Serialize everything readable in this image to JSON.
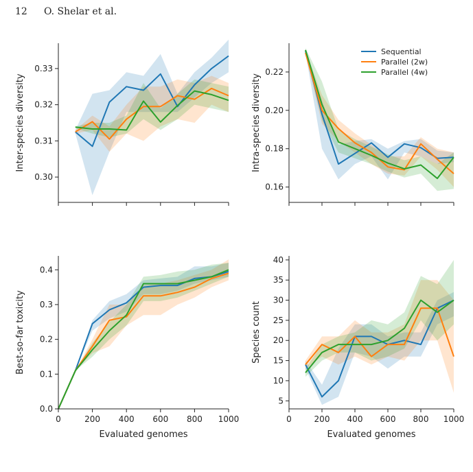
{
  "header": {
    "page_number": "12",
    "running_head": "O. Shelar et al."
  },
  "colors": {
    "Sequential": "#1f77b4",
    "Parallel (2w)": "#ff7f0e",
    "Parallel (4w)": "#2ca02c"
  },
  "chart_data": [
    {
      "type": "line",
      "ylabel": "Inter-species diversity",
      "xlabel": "",
      "xlim": [
        0,
        1000
      ],
      "ylim": [
        0.293,
        0.337
      ],
      "yticks": [
        "0.30",
        "0.31",
        "0.32",
        "0.33"
      ],
      "xticks": [],
      "legend": false,
      "x": [
        100,
        200,
        300,
        400,
        500,
        600,
        700,
        800,
        900,
        1000
      ],
      "series": [
        {
          "name": "Sequential",
          "values": [
            0.3125,
            0.3085,
            0.3207,
            0.325,
            0.324,
            0.3285,
            0.3195,
            0.3255,
            0.33,
            0.3335
          ],
          "lower": [
            0.312,
            0.295,
            0.307,
            0.318,
            0.318,
            0.318,
            0.318,
            0.322,
            0.326,
            0.329
          ],
          "upper": [
            0.313,
            0.323,
            0.324,
            0.329,
            0.328,
            0.334,
            0.323,
            0.329,
            0.333,
            0.338
          ]
        },
        {
          "name": "Parallel (2w)",
          "values": [
            0.3125,
            0.3153,
            0.3105,
            0.316,
            0.3195,
            0.3195,
            0.3225,
            0.3215,
            0.3245,
            0.3225
          ],
          "lower": [
            0.312,
            0.313,
            0.307,
            0.312,
            0.31,
            0.314,
            0.316,
            0.315,
            0.32,
            0.318
          ],
          "upper": [
            0.313,
            0.317,
            0.314,
            0.32,
            0.325,
            0.325,
            0.327,
            0.326,
            0.328,
            0.326
          ]
        },
        {
          "name": "Parallel (4w)",
          "values": [
            0.3138,
            0.3133,
            0.3133,
            0.313,
            0.321,
            0.3152,
            0.3198,
            0.3238,
            0.3228,
            0.3212
          ],
          "lower": [
            0.3135,
            0.312,
            0.311,
            0.312,
            0.316,
            0.313,
            0.316,
            0.32,
            0.319,
            0.318
          ],
          "upper": [
            0.314,
            0.315,
            0.315,
            0.317,
            0.326,
            0.319,
            0.323,
            0.327,
            0.326,
            0.325
          ]
        }
      ]
    },
    {
      "type": "line",
      "ylabel": "Intra-species diversity",
      "xlabel": "",
      "xlim": [
        0,
        1000
      ],
      "ylim": [
        0.152,
        0.235
      ],
      "yticks": [
        "0.16",
        "0.18",
        "0.20",
        "0.22"
      ],
      "xticks": [],
      "legend": true,
      "legend_position": "top-right",
      "x": [
        100,
        200,
        300,
        400,
        500,
        600,
        700,
        800,
        900,
        1000
      ],
      "series": [
        {
          "name": "Sequential",
          "values": [
            0.231,
            0.198,
            0.172,
            0.1775,
            0.183,
            0.1755,
            0.1825,
            0.1805,
            0.175,
            0.1755
          ],
          "lower": [
            0.23,
            0.18,
            0.164,
            0.172,
            0.176,
            0.164,
            0.178,
            0.176,
            0.172,
            0.173
          ],
          "upper": [
            0.232,
            0.205,
            0.182,
            0.184,
            0.185,
            0.18,
            0.184,
            0.185,
            0.179,
            0.178
          ]
        },
        {
          "name": "Parallel (2w)",
          "values": [
            0.23,
            0.2,
            0.1905,
            0.183,
            0.178,
            0.1705,
            0.169,
            0.1825,
            0.1745,
            0.167
          ],
          "lower": [
            0.229,
            0.193,
            0.184,
            0.178,
            0.172,
            0.167,
            0.166,
            0.176,
            0.169,
            0.16
          ],
          "upper": [
            0.231,
            0.208,
            0.195,
            0.188,
            0.182,
            0.176,
            0.176,
            0.186,
            0.18,
            0.178
          ]
        },
        {
          "name": "Parallel (4w)",
          "values": [
            0.2315,
            0.203,
            0.1835,
            0.18,
            0.1765,
            0.1725,
            0.1695,
            0.1715,
            0.1645,
            0.1755
          ],
          "lower": [
            0.2305,
            0.195,
            0.178,
            0.175,
            0.172,
            0.168,
            0.165,
            0.167,
            0.158,
            0.159
          ],
          "upper": [
            0.2325,
            0.215,
            0.19,
            0.185,
            0.181,
            0.177,
            0.174,
            0.176,
            0.172,
            0.178
          ]
        }
      ]
    },
    {
      "type": "line",
      "ylabel": "Best-so-far toxicity",
      "xlabel": "Evaluated genomes",
      "xlim": [
        0,
        1000
      ],
      "ylim": [
        0.0,
        0.44
      ],
      "yticks": [
        "0.0",
        "0.1",
        "0.2",
        "0.3",
        "0.4"
      ],
      "xticks": [
        "0",
        "200",
        "400",
        "600",
        "800",
        "1000"
      ],
      "legend": false,
      "x": [
        0,
        100,
        200,
        300,
        400,
        500,
        600,
        700,
        800,
        900,
        1000
      ],
      "series": [
        {
          "name": "Sequential",
          "values": [
            0.0,
            0.11,
            0.245,
            0.285,
            0.305,
            0.35,
            0.355,
            0.355,
            0.375,
            0.38,
            0.395
          ],
          "lower": [
            0.0,
            0.11,
            0.225,
            0.26,
            0.28,
            0.33,
            0.33,
            0.34,
            0.36,
            0.37,
            0.38
          ],
          "upper": [
            0.0,
            0.11,
            0.255,
            0.31,
            0.33,
            0.37,
            0.375,
            0.38,
            0.41,
            0.41,
            0.42
          ]
        },
        {
          "name": "Parallel (2w)",
          "values": [
            0.0,
            0.11,
            0.18,
            0.255,
            0.265,
            0.325,
            0.325,
            0.335,
            0.35,
            0.375,
            0.39
          ],
          "lower": [
            0.0,
            0.11,
            0.16,
            0.18,
            0.24,
            0.27,
            0.27,
            0.3,
            0.32,
            0.35,
            0.37
          ],
          "upper": [
            0.0,
            0.11,
            0.2,
            0.3,
            0.3,
            0.355,
            0.36,
            0.37,
            0.385,
            0.4,
            0.43
          ]
        },
        {
          "name": "Parallel (4w)",
          "values": [
            0.0,
            0.11,
            0.17,
            0.225,
            0.27,
            0.36,
            0.36,
            0.36,
            0.37,
            0.38,
            0.4
          ],
          "lower": [
            0.0,
            0.11,
            0.15,
            0.2,
            0.24,
            0.31,
            0.31,
            0.32,
            0.34,
            0.36,
            0.38
          ],
          "upper": [
            0.0,
            0.11,
            0.19,
            0.25,
            0.3,
            0.38,
            0.385,
            0.395,
            0.4,
            0.415,
            0.42
          ]
        }
      ]
    },
    {
      "type": "line",
      "ylabel": "Species count",
      "xlabel": "Evaluated genomes",
      "xlim": [
        0,
        1000
      ],
      "ylim": [
        3,
        41
      ],
      "yticks": [
        "5",
        "10",
        "15",
        "20",
        "25",
        "30",
        "35",
        "40"
      ],
      "xticks": [
        "0",
        "200",
        "400",
        "600",
        "800",
        "1000"
      ],
      "legend": false,
      "x": [
        100,
        200,
        300,
        400,
        500,
        600,
        700,
        800,
        900,
        1000
      ],
      "series": [
        {
          "name": "Sequential",
          "values": [
            14,
            6,
            10,
            21,
            21,
            19,
            20,
            19,
            28,
            30
          ],
          "lower": [
            13,
            4,
            6,
            17,
            16,
            13,
            16,
            16,
            24,
            26
          ],
          "upper": [
            15,
            9,
            18,
            24,
            24,
            21,
            22,
            22,
            30,
            32
          ]
        },
        {
          "name": "Parallel (2w)",
          "values": [
            14,
            19,
            17,
            21,
            16,
            19,
            19,
            28,
            28,
            16
          ],
          "lower": [
            13,
            16,
            14,
            16,
            14,
            16,
            15,
            20,
            20,
            7
          ],
          "upper": [
            15,
            21,
            21,
            25,
            22,
            22,
            24,
            35,
            35,
            30
          ]
        },
        {
          "name": "Parallel (4w)",
          "values": [
            12,
            17,
            19,
            19,
            19,
            20,
            23,
            30,
            27,
            30
          ],
          "lower": [
            11,
            15,
            17,
            17,
            15,
            16,
            18,
            25,
            20,
            24
          ],
          "upper": [
            13,
            19,
            21,
            22,
            25,
            24,
            27,
            36,
            34,
            40
          ]
        }
      ]
    }
  ]
}
